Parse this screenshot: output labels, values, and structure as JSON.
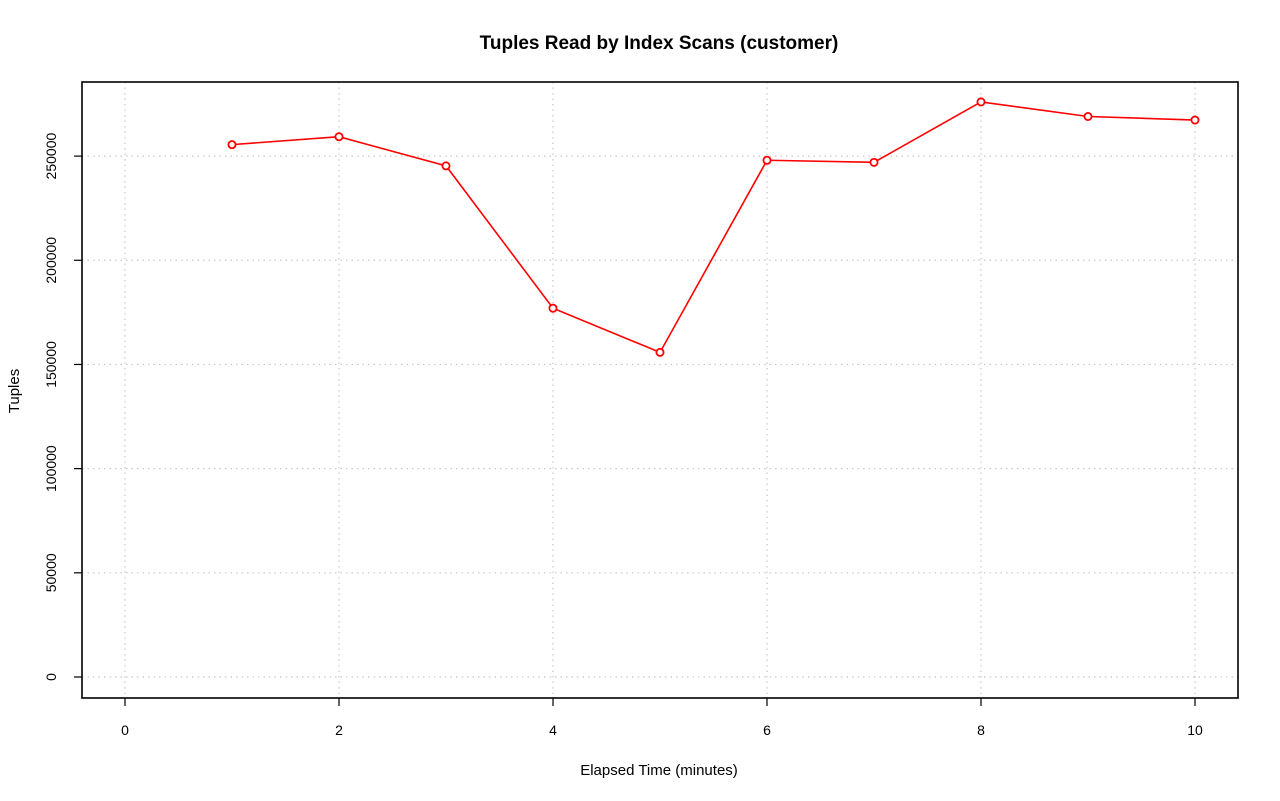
{
  "chart_data": {
    "type": "line",
    "title": "Tuples Read by Index Scans (customer)",
    "xlabel": "Elapsed Time (minutes)",
    "ylabel": "Tuples",
    "xlim": [
      0,
      10
    ],
    "ylim": [
      0,
      275000
    ],
    "x_ticks": [
      0,
      2,
      4,
      6,
      8,
      10
    ],
    "y_ticks": [
      0,
      50000,
      100000,
      150000,
      200000,
      250000
    ],
    "grid": true,
    "series": [
      {
        "color": "#ff0000",
        "x": [
          1,
          2,
          3,
          4,
          5,
          6,
          7,
          8,
          9,
          10
        ],
        "values": [
          255500,
          259300,
          245300,
          177000,
          155800,
          248000,
          247000,
          276000,
          269000,
          267300
        ]
      }
    ]
  }
}
